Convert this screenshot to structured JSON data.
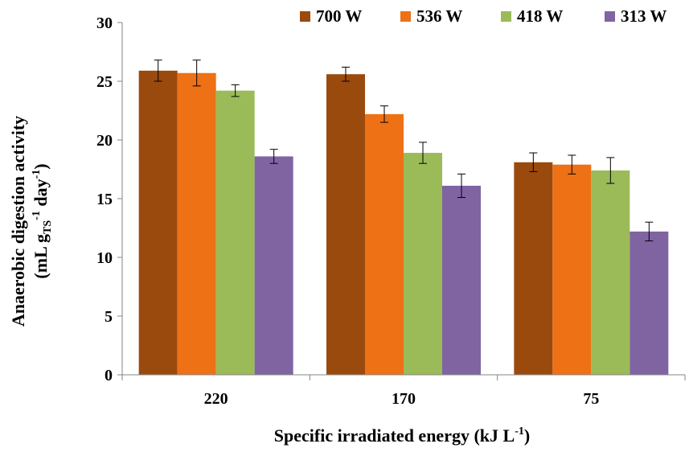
{
  "chart_data": {
    "type": "bar",
    "title": "",
    "xlabel": "Specific irradiated energy (kJ L",
    "xlabel_sup": "-1",
    "xlabel_end": ")",
    "ylabel_line1": "Anaerobic digestion activity",
    "ylabel_line2": {
      "a": "(mL g",
      "sub": "TS",
      "sup1": "-1",
      "b": " day",
      "sup2": "-1",
      "c": ")"
    },
    "categories": [
      "220",
      "170",
      "75"
    ],
    "ylim": [
      0,
      30
    ],
    "yticks": [
      0,
      5,
      10,
      15,
      20,
      25,
      30
    ],
    "grid": false,
    "legend_position": "top",
    "series": [
      {
        "name": "700 W",
        "color": "#9B4A0E",
        "values": [
          25.9,
          25.6,
          18.1
        ],
        "errors": [
          0.9,
          0.6,
          0.8
        ]
      },
      {
        "name": "536 W",
        "color": "#EE7116",
        "values": [
          25.7,
          22.2,
          17.9
        ],
        "errors": [
          1.1,
          0.7,
          0.8
        ]
      },
      {
        "name": "418 W",
        "color": "#9BBB59",
        "values": [
          24.2,
          18.9,
          17.4
        ],
        "errors": [
          0.5,
          0.9,
          1.1
        ]
      },
      {
        "name": "313 W",
        "color": "#8064A2",
        "values": [
          18.6,
          16.1,
          12.2
        ],
        "errors": [
          0.6,
          1.0,
          0.8
        ]
      }
    ]
  }
}
